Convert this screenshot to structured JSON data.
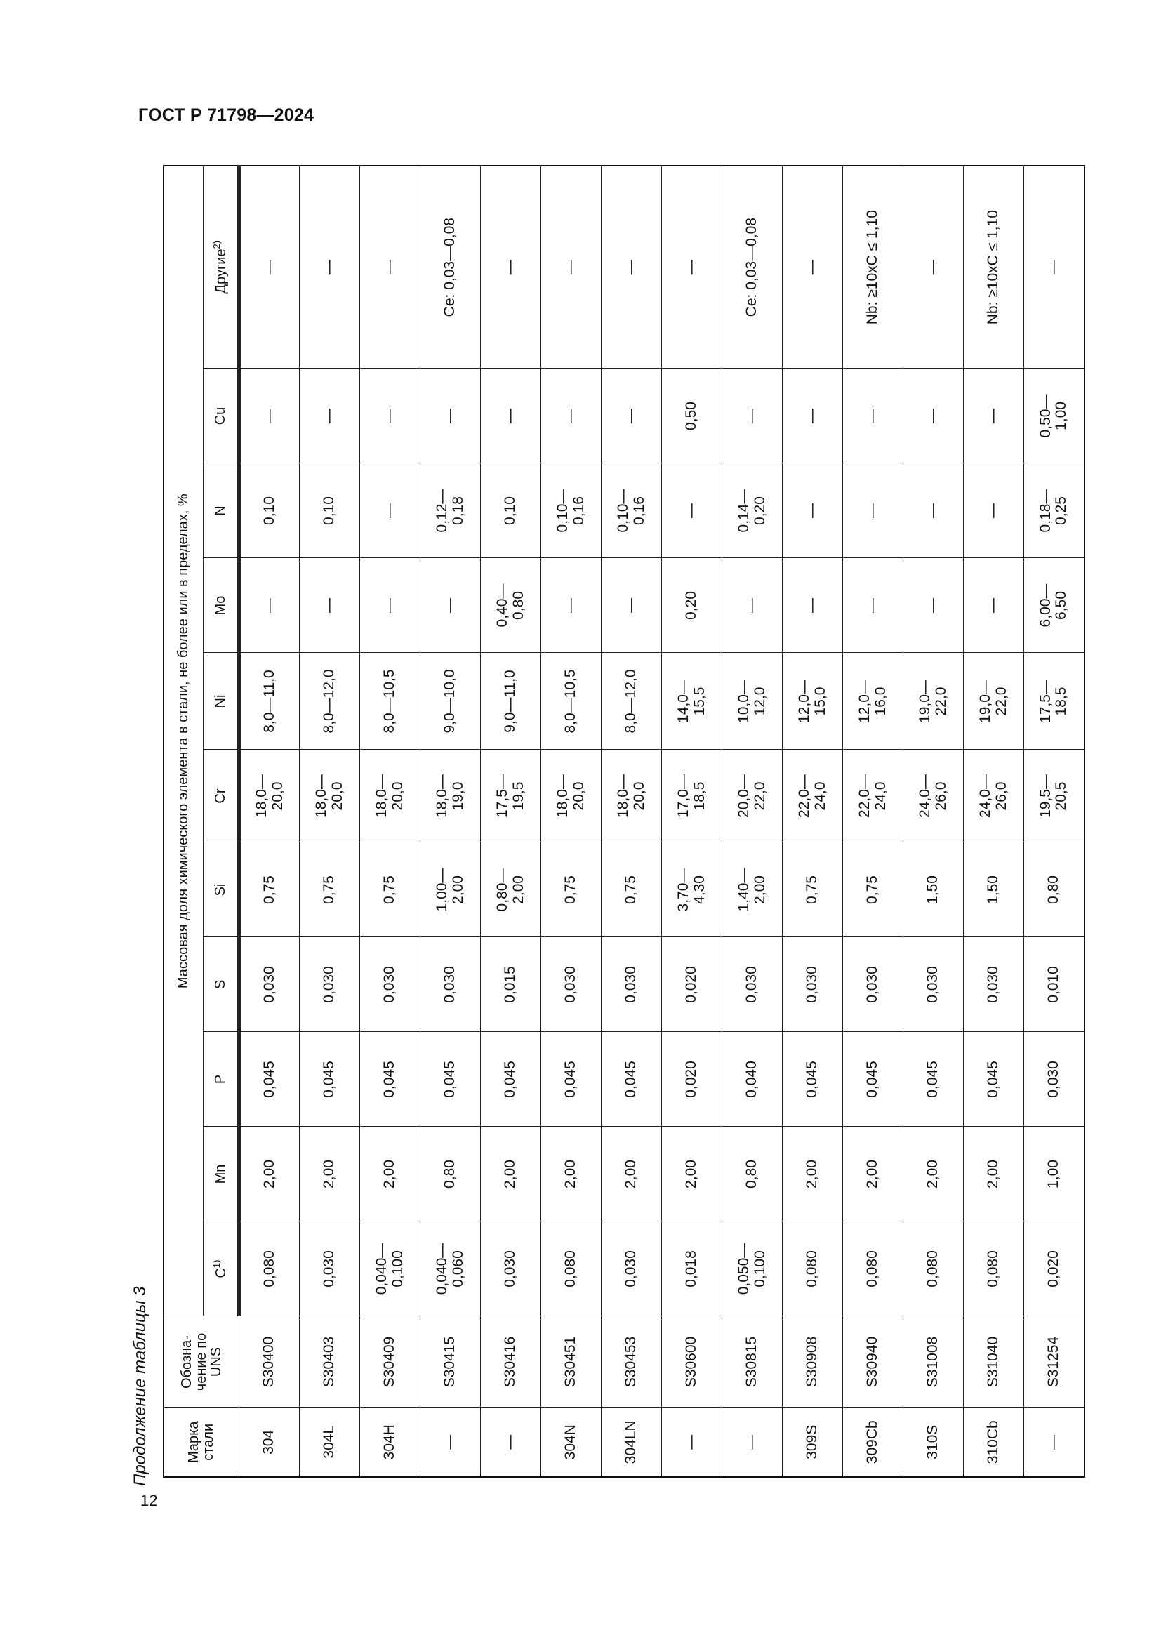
{
  "document": {
    "title": "ГОСТ Р 71798—2024",
    "page_number": "12",
    "caption": "Продолжение таблицы 3"
  },
  "table": {
    "headers": {
      "grade": "Марка стали",
      "uns": "Обозна-\nчение по\nUNS",
      "group": "Массовая доля химического элемента в стали, не более или в пределах, %",
      "c": "C",
      "c_note": "1)",
      "mn": "Mn",
      "p": "P",
      "s": "S",
      "si": "Si",
      "cr": "Cr",
      "ni": "Ni",
      "mo": "Mo",
      "n": "N",
      "cu": "Cu",
      "other": "Другие",
      "other_note": "2)"
    },
    "rows": [
      [
        "304",
        "S30400",
        "0,080",
        "2,00",
        "0,045",
        "0,030",
        "0,75",
        "18,0—\n20,0",
        "8,0—11,0",
        "—",
        "0,10",
        "—",
        "—"
      ],
      [
        "304L",
        "S30403",
        "0,030",
        "2,00",
        "0,045",
        "0,030",
        "0,75",
        "18,0—\n20,0",
        "8,0—12,0",
        "—",
        "0,10",
        "—",
        "—"
      ],
      [
        "304H",
        "S30409",
        "0,040—\n0,100",
        "2,00",
        "0,045",
        "0,030",
        "0,75",
        "18,0—\n20,0",
        "8,0—10,5",
        "—",
        "—",
        "—",
        "—"
      ],
      [
        "—",
        "S30415",
        "0,040—\n0,060",
        "0,80",
        "0,045",
        "0,030",
        "1,00—\n2,00",
        "18,0—\n19,0",
        "9,0—10,0",
        "—",
        "0,12—\n0,18",
        "—",
        "Ce: 0,03—0,08"
      ],
      [
        "—",
        "S30416",
        "0,030",
        "2,00",
        "0,045",
        "0,015",
        "0,80—\n2,00",
        "17,5—\n19,5",
        "9,0—11,0",
        "0,40—\n0,80",
        "0,10",
        "—",
        "—"
      ],
      [
        "304N",
        "S30451",
        "0,080",
        "2,00",
        "0,045",
        "0,030",
        "0,75",
        "18,0—\n20,0",
        "8,0—10,5",
        "—",
        "0,10—\n0,16",
        "—",
        "—"
      ],
      [
        "304LN",
        "S30453",
        "0,030",
        "2,00",
        "0,045",
        "0,030",
        "0,75",
        "18,0—\n20,0",
        "8,0—12,0",
        "—",
        "0,10—\n0,16",
        "—",
        "—"
      ],
      [
        "—",
        "S30600",
        "0,018",
        "2,00",
        "0,020",
        "0,020",
        "3,70—\n4,30",
        "17,0—\n18,5",
        "14,0—\n15,5",
        "0,20",
        "—",
        "0,50",
        "—"
      ],
      [
        "—",
        "S30815",
        "0,050—\n0,100",
        "0,80",
        "0,040",
        "0,030",
        "1,40—\n2,00",
        "20,0—\n22,0",
        "10,0—\n12,0",
        "—",
        "0,14—\n0,20",
        "—",
        "Ce: 0,03—0,08"
      ],
      [
        "309S",
        "S30908",
        "0,080",
        "2,00",
        "0,045",
        "0,030",
        "0,75",
        "22,0—\n24,0",
        "12,0—\n15,0",
        "—",
        "—",
        "—",
        "—"
      ],
      [
        "309Cb",
        "S30940",
        "0,080",
        "2,00",
        "0,045",
        "0,030",
        "0,75",
        "22,0—\n24,0",
        "12,0—\n16,0",
        "—",
        "—",
        "—",
        "Nb: ≥10xC ≤ 1,10"
      ],
      [
        "310S",
        "S31008",
        "0,080",
        "2,00",
        "0,045",
        "0,030",
        "1,50",
        "24,0—\n26,0",
        "19,0—\n22,0",
        "—",
        "—",
        "—",
        "—"
      ],
      [
        "310Cb",
        "S31040",
        "0,080",
        "2,00",
        "0,045",
        "0,030",
        "1,50",
        "24,0—\n26,0",
        "19,0—\n22,0",
        "—",
        "—",
        "—",
        "Nb: ≥10xC ≤ 1,10"
      ],
      [
        "—",
        "S31254",
        "0,020",
        "1,00",
        "0,030",
        "0,010",
        "0,80",
        "19,5—\n20,5",
        "17,5—\n18,5",
        "6,00—\n6,50",
        "0,18—\n0,25",
        "0,50—\n1,00",
        "—"
      ]
    ]
  }
}
